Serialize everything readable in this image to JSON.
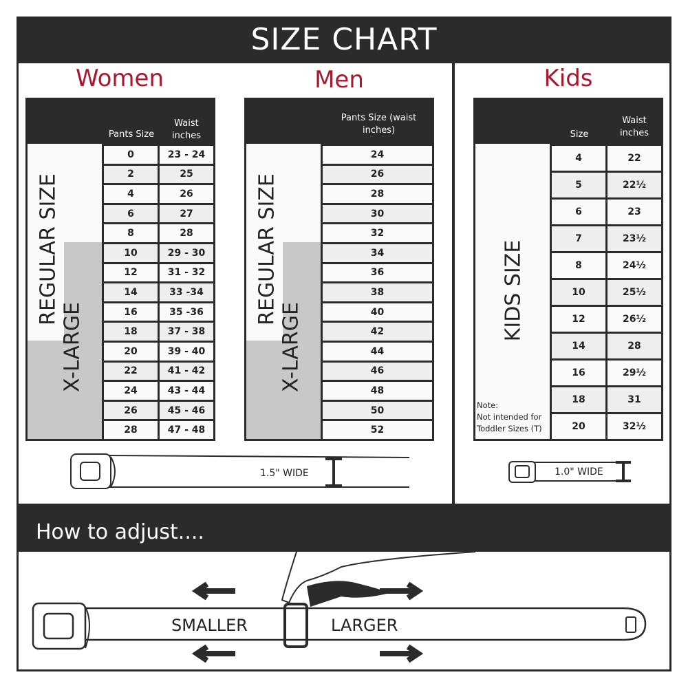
{
  "title": "SIZE CHART",
  "women": {
    "heading": "Women",
    "col1": "Pants Size",
    "col2": "Waist inches",
    "regular_label": "REGULAR SIZE",
    "xlarge_label": "X-LARGE",
    "rows": [
      [
        "0",
        "23 - 24"
      ],
      [
        "2",
        "25"
      ],
      [
        "4",
        "26"
      ],
      [
        "6",
        "27"
      ],
      [
        "8",
        "28"
      ],
      [
        "10",
        "29 - 30"
      ],
      [
        "12",
        "31 - 32"
      ],
      [
        "14",
        "33 -34"
      ],
      [
        "16",
        "35 -36"
      ],
      [
        "18",
        "37 - 38"
      ],
      [
        "20",
        "39 - 40"
      ],
      [
        "22",
        "41 - 42"
      ],
      [
        "24",
        "43 - 44"
      ],
      [
        "26",
        "45 - 46"
      ],
      [
        "28",
        "47 - 48"
      ]
    ]
  },
  "men": {
    "heading": "Men",
    "col1": "Pants Size (waist inches)",
    "regular_label": "REGULAR SIZE",
    "xlarge_label": "X-LARGE",
    "rows": [
      "24",
      "26",
      "28",
      "30",
      "32",
      "34",
      "36",
      "38",
      "40",
      "42",
      "44",
      "46",
      "48",
      "50",
      "52"
    ]
  },
  "kids": {
    "heading": "Kids",
    "col1": "Size",
    "col2": "Waist inches",
    "size_label": "KIDS SIZE",
    "note": "Note:",
    "note_text": "Not intended for Toddler Sizes (T)",
    "rows": [
      [
        "4",
        "22"
      ],
      [
        "5",
        "22½"
      ],
      [
        "6",
        "23"
      ],
      [
        "7",
        "23½"
      ],
      [
        "8",
        "24½"
      ],
      [
        "10",
        "25½"
      ],
      [
        "12",
        "26½"
      ],
      [
        "14",
        "28"
      ],
      [
        "16",
        "29½"
      ],
      [
        "18",
        "31"
      ],
      [
        "20",
        "32½"
      ]
    ]
  },
  "adult_width": "1.5\" WIDE",
  "kids_width": "1.0\" WIDE",
  "adjust": {
    "heading": "How to adjust....",
    "smaller": "SMALLER",
    "larger": "LARGER"
  },
  "colors": {
    "dark": "#2b2b2b",
    "accent": "#a6192e",
    "xlarge_fill": "#c8c8c8"
  }
}
